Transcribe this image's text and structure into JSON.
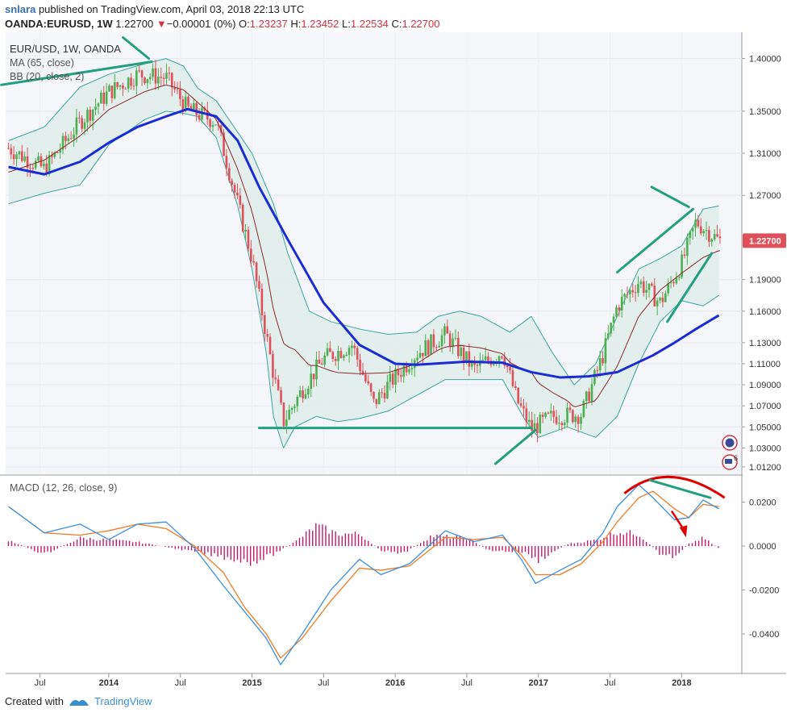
{
  "header": {
    "user": "snlara",
    "published_text": "published on TradingView.com, April 03, 2018 22:13 UTC",
    "symbol": "OANDA:EURUSD, 1W",
    "price": "1.22700",
    "change": "−0.00001 (0%)",
    "o_label": "O:",
    "o_value": "1.23237",
    "h_label": "H:",
    "h_value": "1.23452",
    "l_label": "L:",
    "l_value": "1.22534",
    "c_label": "C:",
    "c_value": "1.22700"
  },
  "legend": {
    "title": "EUR/USD, 1W, OANDA",
    "ma": "MA (65, close)",
    "bb": "BB (20, close, 2)",
    "macd": "MACD (12, 26, close, 9)"
  },
  "footer": {
    "created": "Created with",
    "brand": "TradingView"
  },
  "badge_count": "6",
  "colors": {
    "up": "#4caf50",
    "down": "#e0505a",
    "ma": "#1b2bd6",
    "bb": "#3aa5a0",
    "trend": "#22a07f",
    "macd": "#3a8fe0",
    "signal": "#f07b22",
    "hist": "#c2186a",
    "arrow": "#e00000",
    "price_tag": "#e0505a"
  },
  "chart_data": [
    {
      "type": "candlestick",
      "title": "EUR/USD, 1W, OANDA",
      "price_label": "1.22700",
      "y_ticks": [
        "1.40000",
        "1.35000",
        "1.31000",
        "1.27000",
        "1.19000",
        "1.16000",
        "1.13000",
        "1.11000",
        "1.09000",
        "1.07000",
        "1.05000",
        "1.03000",
        "1.01200"
      ],
      "x_ticks": [
        "Jul",
        "2014",
        "Jul",
        "2015",
        "Jul",
        "2016",
        "Jul",
        "2017",
        "Jul",
        "2018"
      ],
      "ylim": [
        1.005,
        1.425
      ],
      "ma_65": [
        [
          2013.3,
          1.297
        ],
        [
          2013.55,
          1.29
        ],
        [
          2013.8,
          1.302
        ],
        [
          2014.0,
          1.32
        ],
        [
          2014.2,
          1.335
        ],
        [
          2014.4,
          1.345
        ],
        [
          2014.55,
          1.352
        ],
        [
          2014.75,
          1.345
        ],
        [
          2014.9,
          1.322
        ],
        [
          2015.05,
          1.278
        ],
        [
          2015.25,
          1.228
        ],
        [
          2015.5,
          1.168
        ],
        [
          2015.75,
          1.128
        ],
        [
          2016.0,
          1.11
        ],
        [
          2016.15,
          1.109
        ],
        [
          2016.5,
          1.112
        ],
        [
          2016.75,
          1.111
        ],
        [
          2016.95,
          1.102
        ],
        [
          2017.15,
          1.097
        ],
        [
          2017.35,
          1.098
        ],
        [
          2017.55,
          1.102
        ],
        [
          2017.8,
          1.118
        ],
        [
          2017.95,
          1.13
        ],
        [
          2018.1,
          1.143
        ],
        [
          2018.26,
          1.156
        ]
      ],
      "bb_upper": [
        [
          2013.3,
          1.322
        ],
        [
          2013.55,
          1.335
        ],
        [
          2013.8,
          1.373
        ],
        [
          2014.0,
          1.385
        ],
        [
          2014.25,
          1.395
        ],
        [
          2014.4,
          1.4
        ],
        [
          2014.52,
          1.393
        ],
        [
          2014.62,
          1.372
        ],
        [
          2014.75,
          1.36
        ],
        [
          2014.9,
          1.33
        ],
        [
          2015.0,
          1.31
        ],
        [
          2015.15,
          1.262
        ],
        [
          2015.25,
          1.215
        ],
        [
          2015.4,
          1.16
        ],
        [
          2015.55,
          1.15
        ],
        [
          2015.75,
          1.143
        ],
        [
          2015.95,
          1.138
        ],
        [
          2016.15,
          1.14
        ],
        [
          2016.3,
          1.155
        ],
        [
          2016.45,
          1.16
        ],
        [
          2016.6,
          1.155
        ],
        [
          2016.8,
          1.14
        ],
        [
          2016.95,
          1.155
        ],
        [
          2017.1,
          1.12
        ],
        [
          2017.25,
          1.09
        ],
        [
          2017.4,
          1.11
        ],
        [
          2017.55,
          1.155
        ],
        [
          2017.7,
          1.2
        ],
        [
          2017.85,
          1.21
        ],
        [
          2018.0,
          1.222
        ],
        [
          2018.15,
          1.257
        ],
        [
          2018.26,
          1.26
        ]
      ],
      "bb_lower": [
        [
          2013.3,
          1.262
        ],
        [
          2013.55,
          1.272
        ],
        [
          2013.8,
          1.28
        ],
        [
          2014.0,
          1.318
        ],
        [
          2014.25,
          1.342
        ],
        [
          2014.4,
          1.35
        ],
        [
          2014.52,
          1.348
        ],
        [
          2014.62,
          1.345
        ],
        [
          2014.75,
          1.325
        ],
        [
          2014.9,
          1.26
        ],
        [
          2015.0,
          1.2
        ],
        [
          2015.1,
          1.12
        ],
        [
          2015.15,
          1.06
        ],
        [
          2015.22,
          1.03
        ],
        [
          2015.3,
          1.05
        ],
        [
          2015.45,
          1.06
        ],
        [
          2015.6,
          1.055
        ],
        [
          2015.75,
          1.058
        ],
        [
          2015.95,
          1.065
        ],
        [
          2016.15,
          1.08
        ],
        [
          2016.35,
          1.095
        ],
        [
          2016.55,
          1.095
        ],
        [
          2016.75,
          1.095
        ],
        [
          2016.9,
          1.058
        ],
        [
          2017.0,
          1.04
        ],
        [
          2017.2,
          1.05
        ],
        [
          2017.4,
          1.04
        ],
        [
          2017.55,
          1.06
        ],
        [
          2017.7,
          1.11
        ],
        [
          2017.85,
          1.15
        ],
        [
          2018.0,
          1.17
        ],
        [
          2018.15,
          1.165
        ],
        [
          2018.26,
          1.175
        ]
      ],
      "closes": [
        [
          2013.3,
          1.315
        ],
        [
          2013.55,
          1.295
        ],
        [
          2013.8,
          1.34
        ],
        [
          2014.0,
          1.368
        ],
        [
          2014.2,
          1.385
        ],
        [
          2014.4,
          1.382
        ],
        [
          2014.55,
          1.352
        ],
        [
          2014.75,
          1.34
        ],
        [
          2014.9,
          1.262
        ],
        [
          2015.0,
          1.21
        ],
        [
          2015.15,
          1.1
        ],
        [
          2015.22,
          1.055
        ],
        [
          2015.35,
          1.085
        ],
        [
          2015.5,
          1.115
        ],
        [
          2015.7,
          1.128
        ],
        [
          2015.85,
          1.072
        ],
        [
          2015.95,
          1.09
        ],
        [
          2016.15,
          1.12
        ],
        [
          2016.35,
          1.138
        ],
        [
          2016.55,
          1.105
        ],
        [
          2016.75,
          1.122
        ],
        [
          2016.85,
          1.075
        ],
        [
          2016.95,
          1.048
        ],
        [
          2017.1,
          1.06
        ],
        [
          2017.3,
          1.062
        ],
        [
          2017.45,
          1.118
        ],
        [
          2017.55,
          1.165
        ],
        [
          2017.7,
          1.188
        ],
        [
          2017.85,
          1.168
        ],
        [
          2018.0,
          1.205
        ],
        [
          2018.1,
          1.245
        ],
        [
          2018.26,
          1.227
        ]
      ],
      "trendlines": [
        [
          [
            2013.25,
            1.375
          ],
          [
            2014.3,
            1.397
          ]
        ],
        [
          [
            2014.1,
            1.42
          ],
          [
            2014.28,
            1.4
          ]
        ],
        [
          [
            2015.05,
            1.049
          ],
          [
            2016.95,
            1.049
          ]
        ],
        [
          [
            2016.7,
            1.015
          ],
          [
            2016.98,
            1.047
          ]
        ],
        [
          [
            2017.55,
            1.197
          ],
          [
            2018.08,
            1.257
          ]
        ],
        [
          [
            2017.79,
            1.278
          ],
          [
            2018.05,
            1.259
          ]
        ],
        [
          [
            2017.9,
            1.15
          ],
          [
            2018.21,
            1.215
          ]
        ]
      ]
    },
    {
      "type": "line",
      "title": "MACD (12, 26, close, 9)",
      "y_ticks": [
        "0.0200",
        "0.0000",
        "-0.0200",
        "-0.0400"
      ],
      "ylim": [
        -0.058,
        0.032
      ],
      "macd": [
        [
          2013.3,
          0.018
        ],
        [
          2013.55,
          0.006
        ],
        [
          2013.8,
          0.01
        ],
        [
          2014.0,
          0.003
        ],
        [
          2014.2,
          0.01
        ],
        [
          2014.4,
          0.011
        ],
        [
          2014.6,
          -0.001
        ],
        [
          2014.8,
          -0.018
        ],
        [
          2014.95,
          -0.03
        ],
        [
          2015.1,
          -0.042
        ],
        [
          2015.2,
          -0.054
        ],
        [
          2015.35,
          -0.04
        ],
        [
          2015.55,
          -0.02
        ],
        [
          2015.75,
          -0.006
        ],
        [
          2015.9,
          -0.013
        ],
        [
          2016.1,
          -0.008
        ],
        [
          2016.35,
          0.007
        ],
        [
          2016.55,
          0.002
        ],
        [
          2016.75,
          0.005
        ],
        [
          2016.88,
          -0.006
        ],
        [
          2016.98,
          -0.017
        ],
        [
          2017.15,
          -0.011
        ],
        [
          2017.3,
          -0.006
        ],
        [
          2017.45,
          0.006
        ],
        [
          2017.55,
          0.018
        ],
        [
          2017.7,
          0.028
        ],
        [
          2017.8,
          0.022
        ],
        [
          2017.95,
          0.012
        ],
        [
          2018.05,
          0.013
        ],
        [
          2018.15,
          0.021
        ],
        [
          2018.26,
          0.017
        ]
      ],
      "signal": [
        [
          2013.3,
          0.018
        ],
        [
          2013.55,
          0.006
        ],
        [
          2013.8,
          0.005
        ],
        [
          2014.0,
          0.007
        ],
        [
          2014.2,
          0.01
        ],
        [
          2014.4,
          0.008
        ],
        [
          2014.6,
          0.0
        ],
        [
          2014.8,
          -0.012
        ],
        [
          2014.95,
          -0.028
        ],
        [
          2015.1,
          -0.04
        ],
        [
          2015.2,
          -0.051
        ],
        [
          2015.35,
          -0.042
        ],
        [
          2015.55,
          -0.025
        ],
        [
          2015.75,
          -0.01
        ],
        [
          2015.9,
          -0.011
        ],
        [
          2016.1,
          -0.009
        ],
        [
          2016.35,
          0.004
        ],
        [
          2016.55,
          0.003
        ],
        [
          2016.75,
          0.004
        ],
        [
          2016.88,
          -0.004
        ],
        [
          2016.98,
          -0.013
        ],
        [
          2017.15,
          -0.013
        ],
        [
          2017.3,
          -0.008
        ],
        [
          2017.45,
          0.002
        ],
        [
          2017.55,
          0.011
        ],
        [
          2017.7,
          0.022
        ],
        [
          2017.8,
          0.025
        ],
        [
          2017.95,
          0.017
        ],
        [
          2018.05,
          0.013
        ],
        [
          2018.15,
          0.019
        ],
        [
          2018.26,
          0.018
        ]
      ],
      "hist_envelope": [
        [
          2013.3,
          0.003
        ],
        [
          2013.55,
          -0.004
        ],
        [
          2013.8,
          0.004
        ],
        [
          2014.0,
          0.003
        ],
        [
          2014.2,
          0.002
        ],
        [
          2014.45,
          -0.001
        ],
        [
          2014.7,
          -0.004
        ],
        [
          2014.85,
          -0.006
        ],
        [
          2015.0,
          -0.008
        ],
        [
          2015.15,
          -0.004
        ],
        [
          2015.3,
          0.002
        ],
        [
          2015.45,
          0.01
        ],
        [
          2015.6,
          0.006
        ],
        [
          2015.75,
          0.006
        ],
        [
          2015.9,
          -0.002
        ],
        [
          2016.05,
          -0.004
        ],
        [
          2016.25,
          0.005
        ],
        [
          2016.5,
          0.004
        ],
        [
          2016.65,
          -0.002
        ],
        [
          2016.9,
          -0.003
        ],
        [
          2017.0,
          -0.007
        ],
        [
          2017.2,
          0.001
        ],
        [
          2017.4,
          0.003
        ],
        [
          2017.55,
          0.007
        ],
        [
          2017.7,
          0.006
        ],
        [
          2017.85,
          -0.004
        ],
        [
          2017.95,
          -0.005
        ],
        [
          2018.05,
          0.001
        ],
        [
          2018.15,
          0.004
        ],
        [
          2018.26,
          -0.001
        ]
      ]
    }
  ]
}
